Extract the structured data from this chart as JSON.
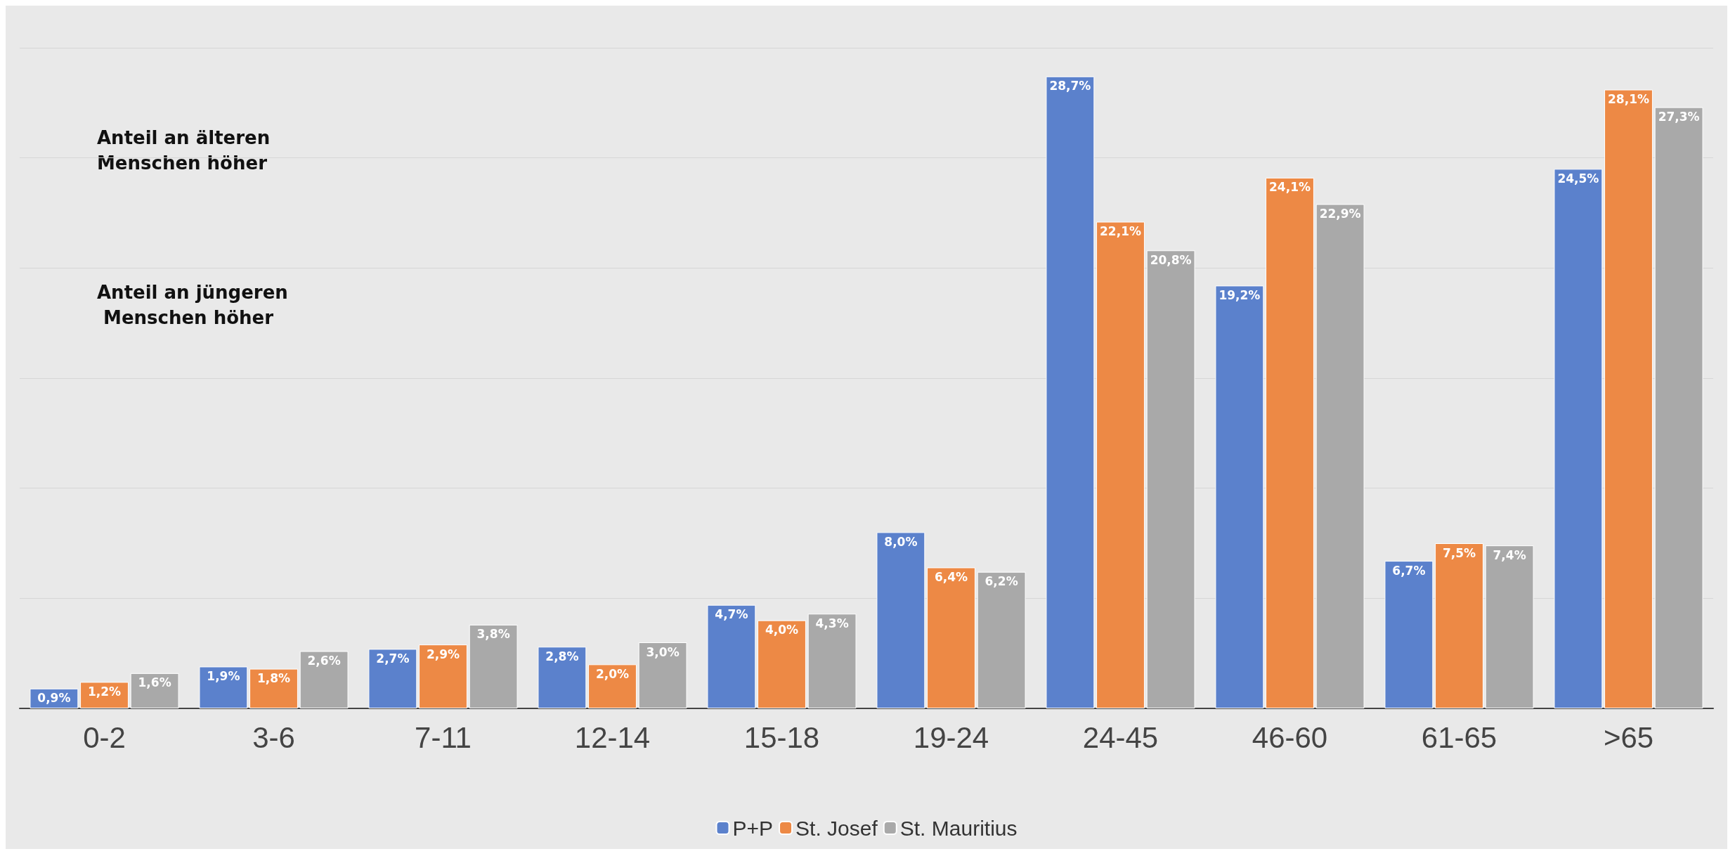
{
  "chart_data": {
    "type": "bar",
    "categories": [
      "0-2",
      "3-6",
      "7-11",
      "12-14",
      "15-18",
      "19-24",
      "24-45",
      "46-60",
      "61-65",
      ">65"
    ],
    "series": [
      {
        "name": "P+P",
        "color": "#5b81cc",
        "values": [
          0.9,
          1.9,
          2.7,
          2.8,
          4.7,
          8.0,
          28.7,
          19.2,
          6.7,
          24.5
        ],
        "value_labels": [
          "0,9%",
          "1,9%",
          "2,7%",
          "2,8%",
          "4,7%",
          "8,0%",
          "28,7%",
          "19,2%",
          "6,7%",
          "24,5%"
        ]
      },
      {
        "name": "St. Josef",
        "color": "#ed8945",
        "values": [
          1.2,
          1.8,
          2.9,
          2.0,
          4.0,
          6.4,
          22.1,
          24.1,
          7.5,
          28.1
        ],
        "value_labels": [
          "1,2%",
          "1,8%",
          "2,9%",
          "2,0%",
          "4,0%",
          "6,4%",
          "22,1%",
          "24,1%",
          "7,5%",
          "28,1%"
        ]
      },
      {
        "name": "St. Mauritius",
        "color": "#a9a9a9",
        "values": [
          1.6,
          2.6,
          3.8,
          3.0,
          4.3,
          6.2,
          20.8,
          22.9,
          7.4,
          27.3
        ],
        "value_labels": [
          "1,6%",
          "2,6%",
          "3,8%",
          "3,0%",
          "4,3%",
          "6,2%",
          "20,8%",
          "22,9%",
          "7,4%",
          "27,3%"
        ]
      }
    ],
    "ylim": [
      0,
      30
    ],
    "yticks": [
      0,
      {
        "value": 5,
        "label": null
      },
      {
        "value": 10,
        "label": null
      },
      {
        "value": 15,
        "label": null
      },
      {
        "value": 20,
        "label": null
      },
      {
        "value": 25,
        "label": null
      },
      {
        "value": 30,
        "label": null
      }
    ],
    "tick_labels": "x",
    "grid": "y",
    "legend": "bottom",
    "annotations": [
      "Anteil an älteren Menschen höher",
      "Anteil an jüngeren Menschen höher"
    ]
  }
}
